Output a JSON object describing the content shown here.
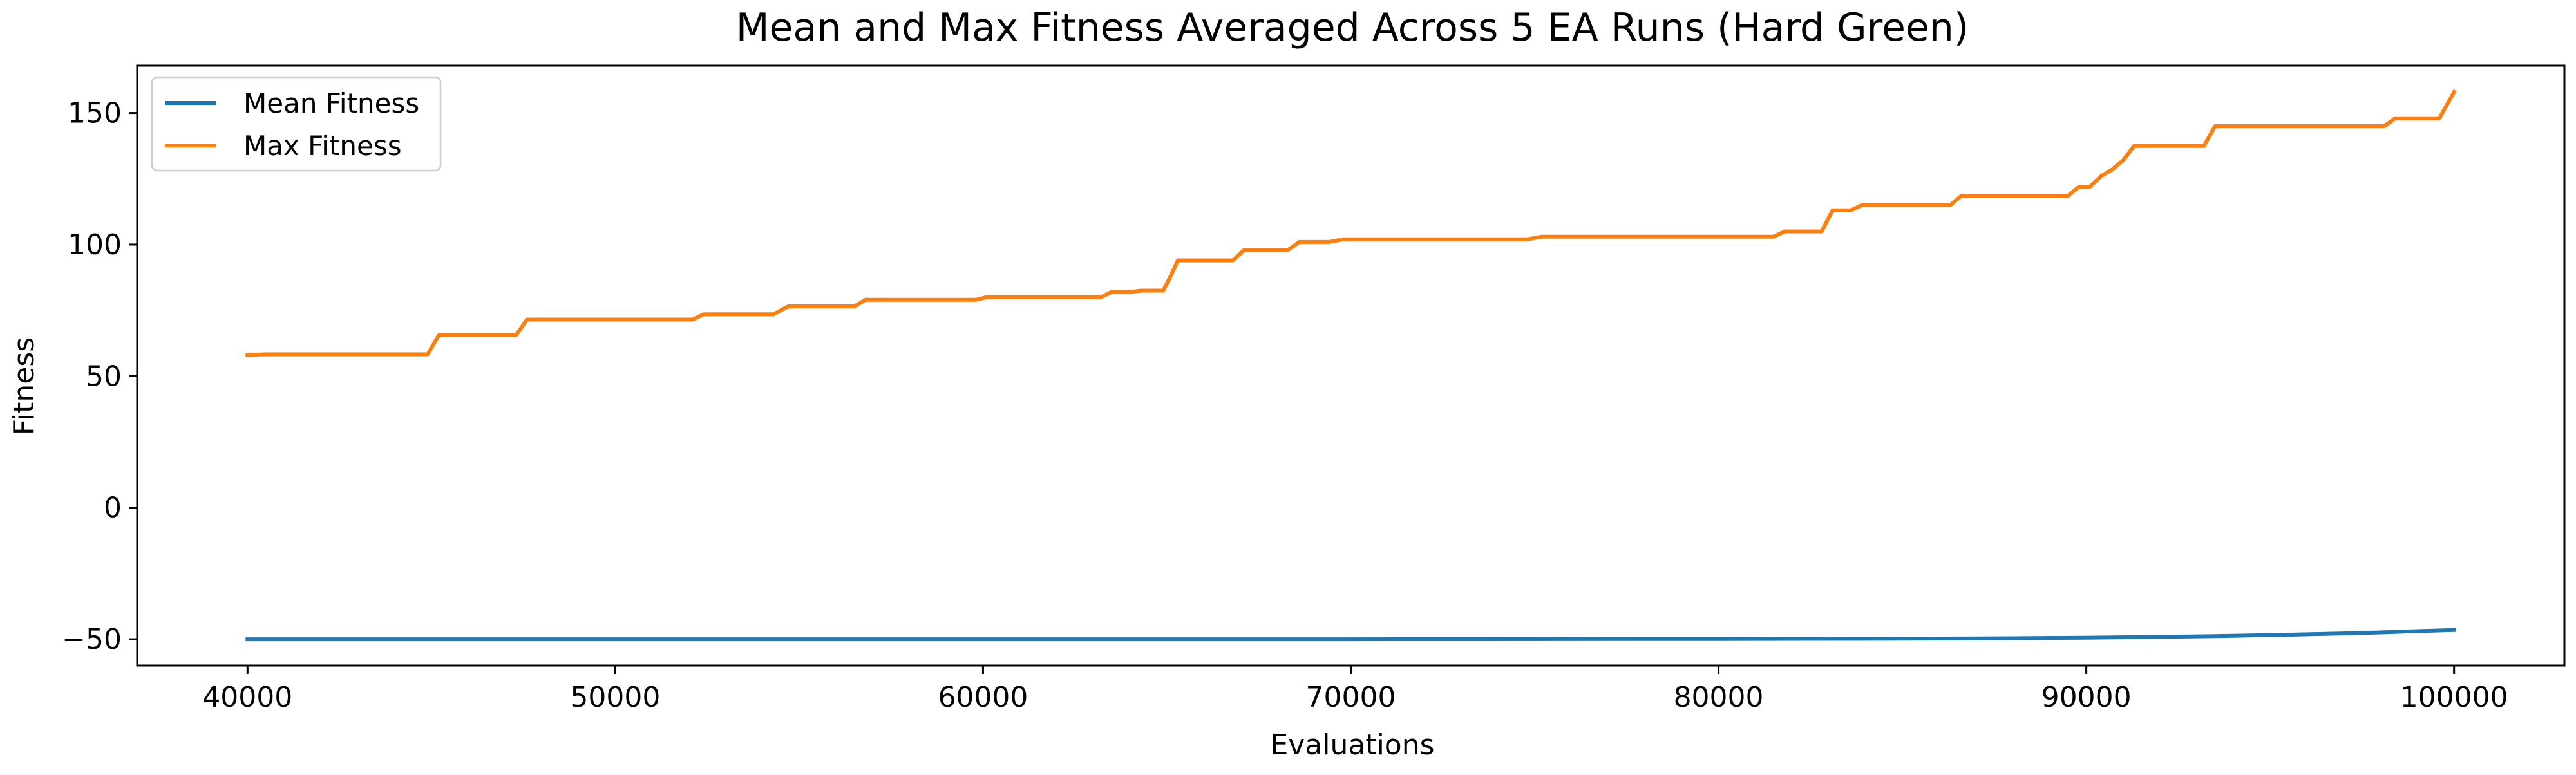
{
  "chart_data": {
    "type": "line",
    "title": "Mean and Max Fitness Averaged Across 5 EA Runs (Hard Green)",
    "xlabel": "Evaluations",
    "ylabel": "Fitness",
    "xlim": [
      37000,
      103000
    ],
    "ylim": [
      -60,
      168
    ],
    "x_ticks": [
      40000,
      50000,
      60000,
      70000,
      80000,
      90000,
      100000
    ],
    "x_tick_labels": [
      "40000",
      "50000",
      "60000",
      "70000",
      "80000",
      "90000",
      "100000"
    ],
    "y_ticks": [
      -50,
      0,
      50,
      100,
      150
    ],
    "y_tick_labels": [
      "−50",
      "0",
      "50",
      "100",
      "150"
    ],
    "grid": false,
    "legend_position": "top-left",
    "series": [
      {
        "name": "Mean Fitness",
        "color": "#1f77b4",
        "x": [
          40000,
          50000,
          60000,
          70000,
          80000,
          85000,
          88000,
          90000,
          92000,
          94000,
          95000,
          96000,
          97000,
          98000,
          99000,
          100000
        ],
        "y": [
          -50,
          -50,
          -50,
          -50,
          -49.9,
          -49.8,
          -49.6,
          -49.4,
          -49.1,
          -48.7,
          -48.4,
          -48.1,
          -47.8,
          -47.4,
          -46.9,
          -46.5
        ]
      },
      {
        "name": "Max Fitness",
        "color": "#ff7f0e",
        "x": [
          40000,
          40500,
          44900,
          45200,
          47300,
          47600,
          52100,
          52400,
          54300,
          54700,
          56500,
          56800,
          58500,
          59800,
          60100,
          63200,
          63500,
          64000,
          64300,
          64900,
          65100,
          65300,
          66800,
          67100,
          68300,
          68600,
          69400,
          69800,
          74800,
          75200,
          81500,
          81800,
          82800,
          83100,
          83600,
          83900,
          86300,
          86600,
          89500,
          89800,
          90100,
          90400,
          90700,
          91000,
          91300,
          93200,
          93500,
          98100,
          98400,
          99600,
          100000
        ],
        "y": [
          58,
          58.3,
          58.3,
          65.5,
          65.5,
          71.5,
          71.5,
          73.5,
          73.5,
          76.5,
          76.5,
          79,
          79,
          79,
          80,
          80,
          82,
          82,
          82.5,
          82.5,
          88,
          94,
          94,
          98,
          98,
          101,
          101,
          102,
          102,
          103,
          103,
          105,
          105,
          113,
          113,
          115,
          115,
          118.5,
          118.5,
          122,
          122,
          126,
          128.5,
          132,
          137.5,
          137.5,
          145,
          145,
          148,
          148,
          158
        ]
      }
    ]
  }
}
